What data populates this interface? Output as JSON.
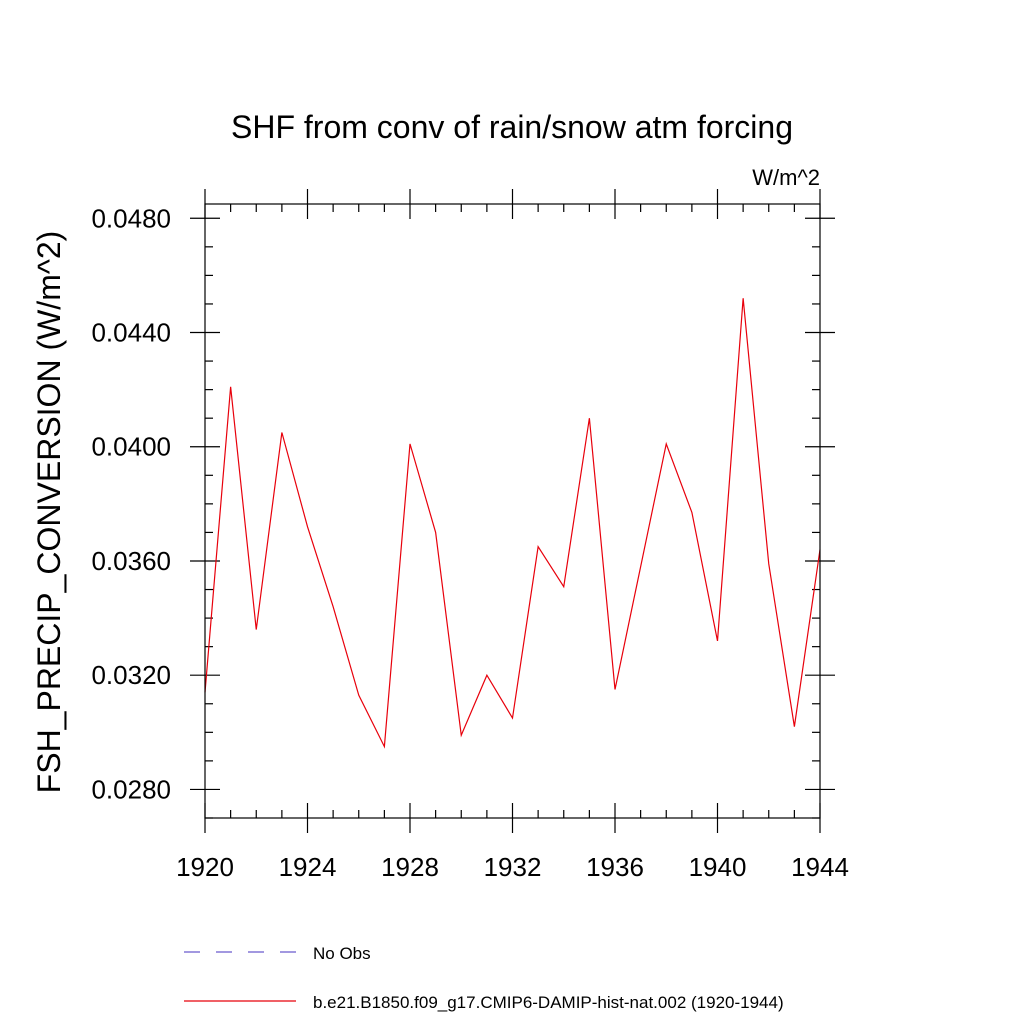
{
  "chart_data": {
    "type": "line",
    "title": "SHF from conv of rain/snow atm forcing",
    "units_label": "W/m^2",
    "ylabel": "FSH_PRECIP_CONVERSION  (W/m^2)",
    "xlabel": "",
    "xlim": [
      1920,
      1944
    ],
    "ylim": [
      0.027,
      0.0485
    ],
    "x_ticks": [
      1920,
      1924,
      1928,
      1932,
      1936,
      1940,
      1944
    ],
    "x_tick_labels": [
      "1920",
      "1924",
      "1928",
      "1932",
      "1936",
      "1940",
      "1944"
    ],
    "y_ticks": [
      0.028,
      0.032,
      0.036,
      0.04,
      0.044,
      0.048
    ],
    "y_tick_labels": [
      "0.0280",
      "0.0320",
      "0.0360",
      "0.0400",
      "0.0440",
      "0.0480"
    ],
    "grid": false,
    "legend_position": "bottom",
    "series": [
      {
        "name": "No Obs",
        "color": "#6a5acd",
        "dash": "dashed",
        "x": [],
        "values": []
      },
      {
        "name": "b.e21.B1850.f09_g17.CMIP6-DAMIP-hist-nat.002 (1920-1944)",
        "color": "#e8000b",
        "dash": "solid",
        "x": [
          1920,
          1921,
          1922,
          1923,
          1924,
          1925,
          1926,
          1927,
          1928,
          1929,
          1930,
          1931,
          1932,
          1933,
          1934,
          1935,
          1936,
          1937,
          1938,
          1939,
          1940,
          1941,
          1942,
          1943,
          1944
        ],
        "values": [
          0.0314,
          0.0421,
          0.0336,
          0.0405,
          0.0372,
          0.0344,
          0.0313,
          0.0295,
          0.0401,
          0.037,
          0.0299,
          0.032,
          0.0305,
          0.0365,
          0.0351,
          0.041,
          0.0315,
          0.0358,
          0.0401,
          0.0377,
          0.0332,
          0.0452,
          0.0359,
          0.0302,
          0.0364
        ]
      }
    ]
  }
}
